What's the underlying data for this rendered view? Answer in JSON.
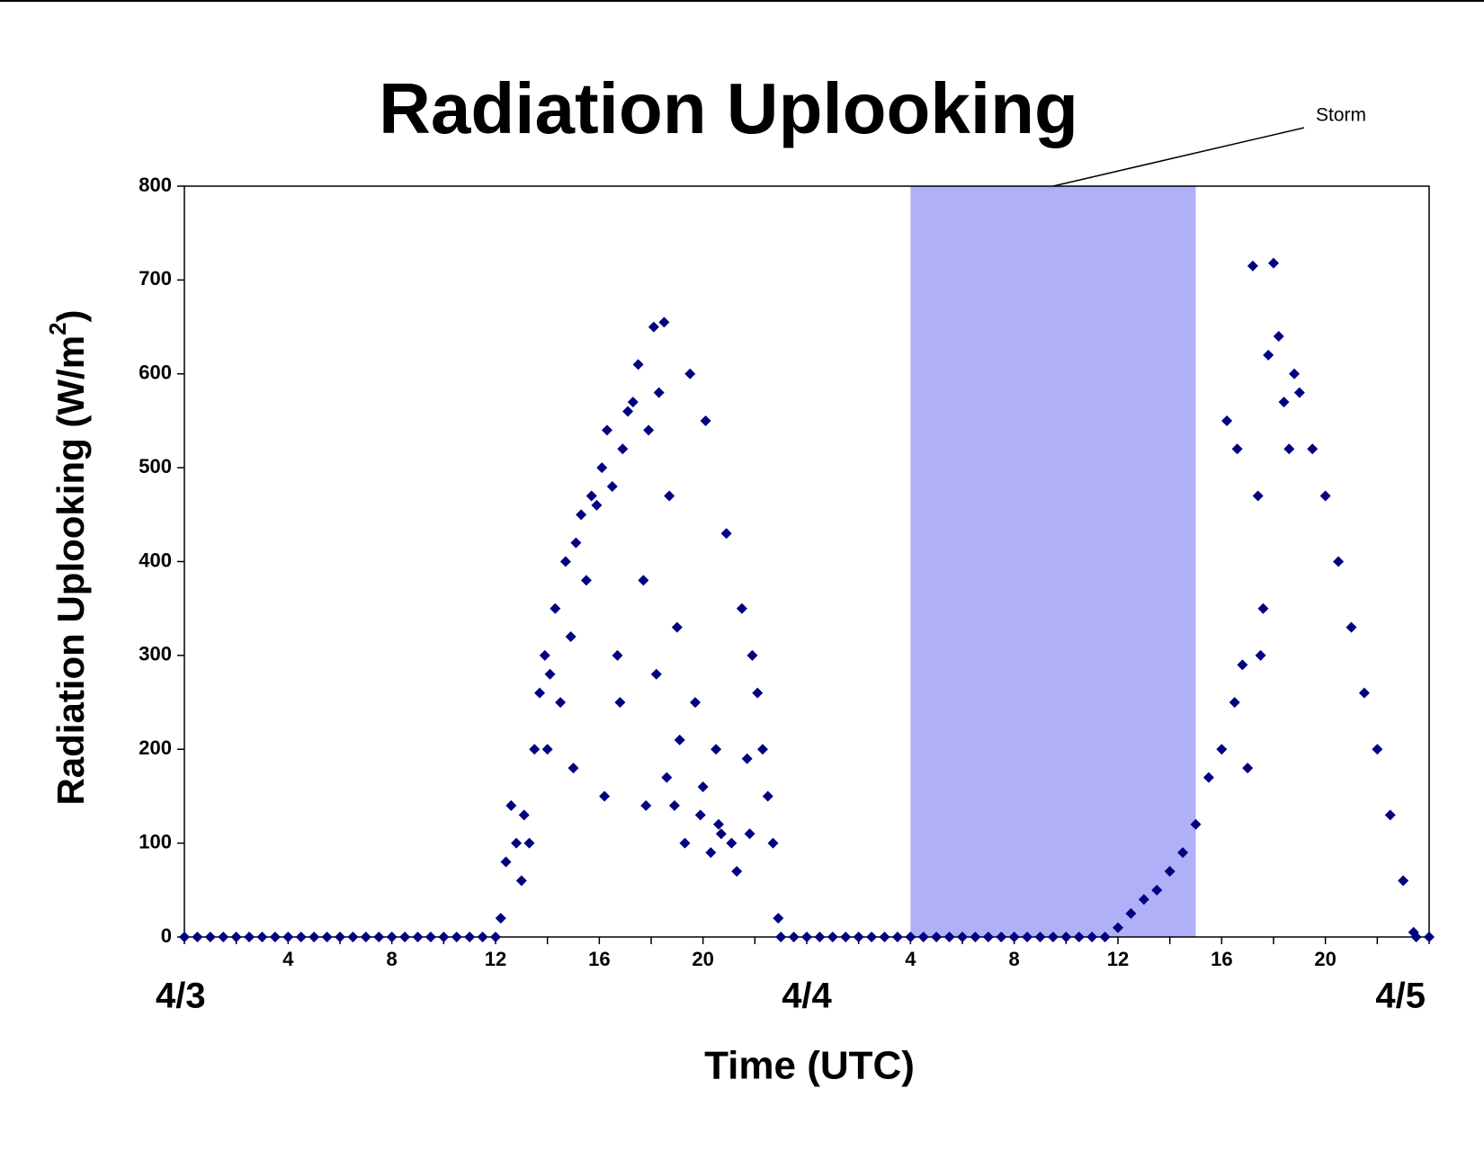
{
  "chart_data": {
    "type": "scatter",
    "title": "Radiation Uplooking",
    "y_label": "Radiation Uplooking (W/m",
    "y_label_sup": "2",
    "y_label_end": ")",
    "x_label": "Time (UTC)",
    "annotation": {
      "text": "Storm",
      "x_start": 28,
      "x_end": 39,
      "color": "#b0b0f8"
    },
    "xlim": [
      0,
      48
    ],
    "ylim": [
      0,
      800
    ],
    "yticks": [
      0,
      100,
      200,
      300,
      400,
      500,
      600,
      700,
      800
    ],
    "xticks": [
      4,
      8,
      12,
      16,
      20,
      {
        "value": 28,
        "label": "4"
      },
      {
        "value": 32,
        "label": "8"
      },
      {
        "value": 36,
        "label": "12"
      },
      {
        "value": 40,
        "label": "16"
      },
      {
        "value": 44,
        "label": "20"
      }
    ],
    "x_minor_ticks": [
      0,
      2,
      4,
      6,
      8,
      10,
      12,
      14,
      16,
      18,
      20,
      22,
      24,
      26,
      28,
      30,
      32,
      34,
      36,
      38,
      40,
      42,
      44,
      46,
      48
    ],
    "day_labels": [
      {
        "value": 0,
        "label": "4/3"
      },
      {
        "value": 24,
        "label": "4/4"
      },
      {
        "value": 48,
        "label": "4/5"
      }
    ],
    "series": [
      {
        "name": "Radiation",
        "color": "#000080",
        "x": [
          0,
          0.5,
          1,
          1.5,
          2,
          2.5,
          3,
          3.5,
          4,
          4.5,
          5,
          5.5,
          6,
          6.5,
          7,
          7.5,
          8,
          8.5,
          9,
          9.5,
          10,
          10.5,
          11,
          11.5,
          12,
          12.2,
          12.4,
          12.6,
          12.8,
          13.0,
          13.1,
          13.3,
          13.5,
          13.7,
          13.9,
          14.0,
          14.1,
          14.3,
          14.5,
          14.7,
          14.9,
          15.0,
          15.1,
          15.3,
          15.5,
          15.7,
          15.9,
          16.1,
          16.2,
          16.3,
          16.5,
          16.7,
          16.8,
          16.9,
          17.1,
          17.3,
          17.5,
          17.7,
          17.8,
          17.9,
          18.1,
          18.2,
          18.3,
          18.5,
          18.6,
          18.7,
          18.9,
          19.0,
          19.1,
          19.3,
          19.5,
          19.7,
          19.9,
          20.0,
          20.1,
          20.3,
          20.5,
          20.6,
          20.7,
          20.9,
          21.1,
          21.3,
          21.5,
          21.7,
          21.8,
          21.9,
          22.1,
          22.3,
          22.5,
          22.7,
          22.9,
          23,
          23.5,
          24,
          24.5,
          25,
          25.5,
          26,
          26.5,
          27,
          27.5,
          28,
          28.5,
          29,
          29.5,
          30,
          30.5,
          31,
          31.5,
          32,
          32.5,
          33,
          33.5,
          34,
          34.5,
          35,
          35.5,
          36,
          36.5,
          37,
          37.5,
          38,
          38.5,
          39,
          39.5,
          40,
          40.2,
          40.5,
          40.6,
          40.8,
          41,
          41.2,
          41.4,
          41.5,
          41.6,
          41.8,
          42,
          42.2,
          42.4,
          42.6,
          42.8,
          43,
          43.5,
          44,
          44.5,
          45,
          45.5,
          46,
          46.5,
          47,
          47.4,
          47.5,
          48
        ],
        "values": [
          0,
          0,
          0,
          0,
          0,
          0,
          0,
          0,
          0,
          0,
          0,
          0,
          0,
          0,
          0,
          0,
          0,
          0,
          0,
          0,
          0,
          0,
          0,
          0,
          0,
          20,
          80,
          140,
          100,
          60,
          130,
          100,
          200,
          260,
          300,
          200,
          280,
          350,
          250,
          400,
          320,
          180,
          420,
          450,
          380,
          470,
          460,
          500,
          150,
          540,
          480,
          300,
          250,
          520,
          560,
          570,
          610,
          380,
          140,
          540,
          650,
          280,
          580,
          655,
          170,
          470,
          140,
          330,
          210,
          100,
          600,
          250,
          130,
          160,
          550,
          90,
          200,
          120,
          110,
          430,
          100,
          70,
          350,
          190,
          110,
          300,
          260,
          200,
          150,
          100,
          20,
          0,
          0,
          0,
          0,
          0,
          0,
          0,
          0,
          0,
          0,
          0,
          0,
          0,
          0,
          0,
          0,
          0,
          0,
          0,
          0,
          0,
          0,
          0,
          0,
          0,
          0,
          10,
          25,
          40,
          50,
          70,
          90,
          120,
          170,
          200,
          550,
          250,
          520,
          290,
          180,
          715,
          470,
          300,
          350,
          620,
          718,
          640,
          570,
          520,
          600,
          580,
          520,
          470,
          400,
          330,
          260,
          200,
          130,
          60,
          5,
          0,
          0
        ]
      }
    ]
  }
}
